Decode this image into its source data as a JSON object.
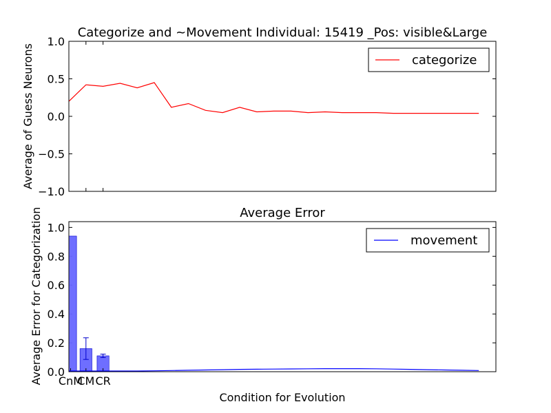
{
  "chart_data": [
    {
      "type": "line",
      "title": "Categorize and ~Movement Individual: 15419 _Pos: visible&Large",
      "xlabel": "",
      "ylabel": "Average of Guess Neurons",
      "ylim": [
        -1.0,
        1.0
      ],
      "yticks": [
        "1.0",
        "0.5",
        "0.0",
        "−0.5",
        "−1.0"
      ],
      "ytick_values": [
        1.0,
        0.5,
        0.0,
        -0.5,
        -1.0
      ],
      "xlim": [
        0,
        25
      ],
      "x": [
        0,
        1,
        2,
        3,
        4,
        5,
        6,
        7,
        8,
        9,
        10,
        11,
        12,
        13,
        14,
        15,
        16,
        17,
        18,
        19,
        20,
        21,
        22,
        23,
        24
      ],
      "series": [
        {
          "name": "categorize",
          "color": "#ff0000",
          "values": [
            0.2,
            0.42,
            0.4,
            0.44,
            0.38,
            0.45,
            0.12,
            0.17,
            0.08,
            0.05,
            0.12,
            0.06,
            0.07,
            0.07,
            0.05,
            0.06,
            0.05,
            0.05,
            0.05,
            0.04,
            0.04,
            0.04,
            0.04,
            0.04,
            0.04
          ]
        }
      ],
      "legend": "upper-right",
      "grid": false
    },
    {
      "type": "bar",
      "title": "Average Error",
      "xlabel": "Condition for Evolution",
      "ylabel": "Average Error for Categorization",
      "ylim": [
        0.0,
        1.04
      ],
      "yticks": [
        "1.0",
        "0.8",
        "0.6",
        "0.4",
        "0.2",
        "0.0"
      ],
      "ytick_values": [
        1.0,
        0.8,
        0.6,
        0.4,
        0.2,
        0.0
      ],
      "xlim": [
        0,
        25
      ],
      "categories": [
        "CnM",
        "CM",
        "CR"
      ],
      "category_x": [
        0.1,
        1.0,
        2.0
      ],
      "values": [
        0.94,
        0.16,
        0.11
      ],
      "errors": [
        0.0,
        0.075,
        0.012
      ],
      "bar_color": "#6666ff",
      "series": [
        {
          "name": "movement",
          "color": "#0000ff",
          "x": [
            0,
            1,
            2,
            3,
            4,
            5,
            6,
            7,
            8,
            9,
            10,
            11,
            12,
            13,
            14,
            15,
            16,
            17,
            18,
            19,
            20,
            21,
            22,
            23,
            24
          ],
          "values": [
            0.005,
            0.005,
            0.005,
            0.005,
            0.005,
            0.006,
            0.008,
            0.01,
            0.012,
            0.014,
            0.016,
            0.017,
            0.018,
            0.019,
            0.02,
            0.021,
            0.021,
            0.021,
            0.02,
            0.018,
            0.016,
            0.014,
            0.012,
            0.01,
            0.008
          ]
        }
      ],
      "legend": "upper-right",
      "grid": false
    }
  ]
}
